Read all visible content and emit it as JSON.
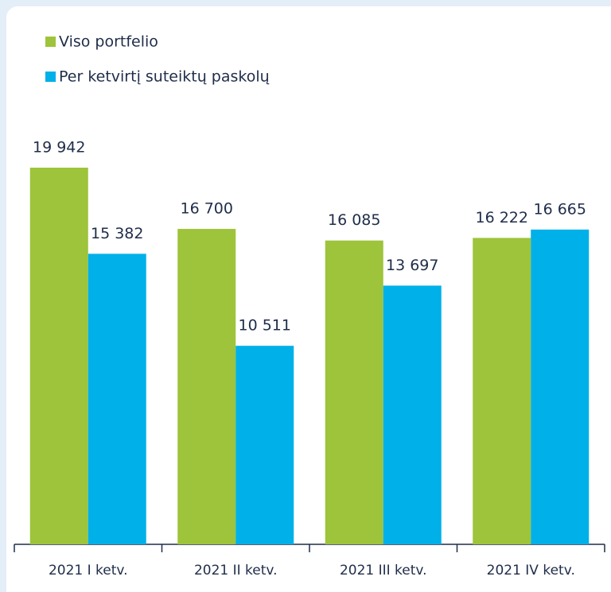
{
  "chart_data": {
    "type": "bar",
    "categories": [
      "2021 I ketv.",
      "2021 II ketv.",
      "2021 III ketv.",
      "2021 IV ketv."
    ],
    "series": [
      {
        "name": "Viso portfelio",
        "color": "#9dc43a",
        "values": [
          19942,
          16700,
          16085,
          16222
        ],
        "value_labels": [
          "19 942",
          "16 700",
          "16 085",
          "16 222"
        ]
      },
      {
        "name": "Per ketvirtį suteiktų paskolų",
        "color": "#00b0e8",
        "values": [
          15382,
          10511,
          13697,
          16665
        ],
        "value_labels": [
          "15 382",
          "10 511",
          "13 697",
          "16 665"
        ]
      }
    ]
  }
}
